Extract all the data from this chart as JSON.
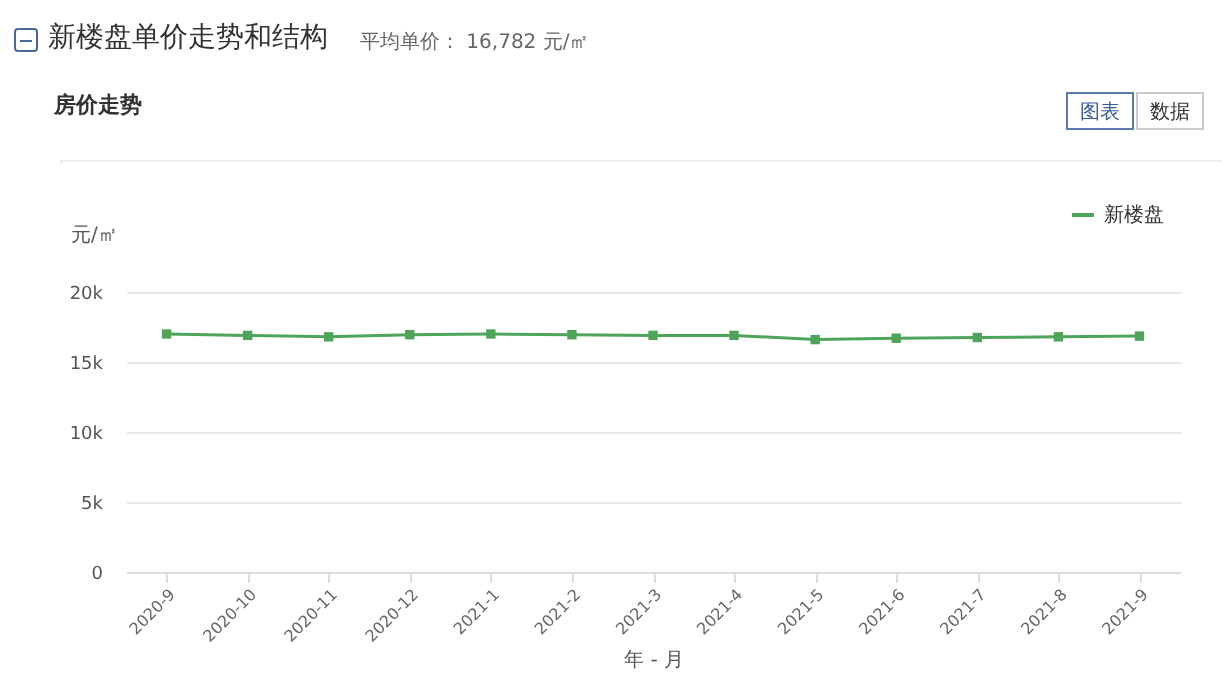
{
  "chart_data": {
    "type": "line",
    "title": "新楼盘单价走势和结构",
    "subtitle": "平均单价： 16,782 元/㎡",
    "annotations": [
      "房价走势",
      "图表",
      "数据"
    ],
    "xlabel": "年 - 月",
    "ylabel": "元/㎡",
    "categories": [
      "2020-9",
      "2020-10",
      "2020-11",
      "2020-12",
      "2021-1",
      "2021-2",
      "2021-3",
      "2021-4",
      "2021-5",
      "2021-6",
      "2021-7",
      "2021-8",
      "2021-9"
    ],
    "series": [
      {
        "name": "新楼盘",
        "color": "#4ea55a",
        "values": [
          17000,
          16900,
          16800,
          16950,
          17000,
          16950,
          16900,
          16900,
          16600,
          16700,
          16750,
          16800,
          16850
        ]
      }
    ],
    "ylim": [
      0,
      20000
    ],
    "yticks": [
      0,
      {
        "value": 5000,
        "label": "5k"
      },
      {
        "value": 10000,
        "label": "10k"
      },
      {
        "value": 15000,
        "label": "15k"
      },
      {
        "value": 20000,
        "label": "20k"
      }
    ],
    "grid": "y",
    "legend": "top right",
    "marker": "square",
    "line_style": "solid"
  }
}
